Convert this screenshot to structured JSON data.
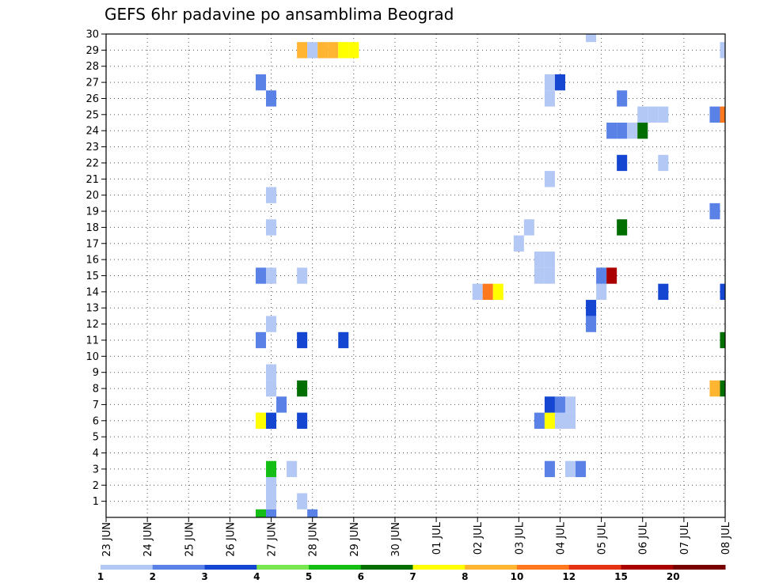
{
  "chart_data": {
    "type": "heatmap",
    "title": "GEFS 6hr padavine po ansamblima Beograd",
    "x_tick_labels": [
      "23 JUN",
      "24 JUN",
      "25 JUN",
      "26 JUN",
      "27 JUN",
      "28 JUN",
      "29 JUN",
      "30 JUN",
      "01 JUL",
      "02 JUL",
      "03 JUL",
      "04 JUL",
      "05 JUL",
      "06 JUL",
      "07 JUL",
      "08 JUL"
    ],
    "y_tick_labels": [
      "1",
      "2",
      "3",
      "4",
      "5",
      "6",
      "7",
      "8",
      "9",
      "10",
      "11",
      "12",
      "13",
      "14",
      "15",
      "16",
      "17",
      "18",
      "19",
      "20",
      "21",
      "22",
      "23",
      "24",
      "25",
      "26",
      "27",
      "28",
      "29",
      "30"
    ],
    "x_unit": "6-hour step from 23 JUN 00",
    "xlim": [
      0,
      60
    ],
    "ylim": [
      0,
      30
    ],
    "grid": "dotted",
    "legend_position": "bottom",
    "legend": {
      "labels": [
        "1",
        "2",
        "3",
        "4",
        "5",
        "6",
        "7",
        "8",
        "10",
        "12",
        "15",
        "20"
      ],
      "colors": [
        "#b4c8f5",
        "#5a82e6",
        "#1446d2",
        "#78e650",
        "#14be14",
        "#006e00",
        "#ffff00",
        "#ffb432",
        "#ff781e",
        "#e63214",
        "#aa0000",
        "#780000"
      ]
    },
    "cells": [
      {
        "x": 15,
        "y": 0,
        "v": 5
      },
      {
        "x": 16,
        "y": 0,
        "v": 2
      },
      {
        "x": 16,
        "y": 1,
        "v": 1
      },
      {
        "x": 16,
        "y": 2,
        "v": 1
      },
      {
        "x": 16,
        "y": 3,
        "v": 5
      },
      {
        "x": 18,
        "y": 3,
        "v": 1
      },
      {
        "x": 19,
        "y": 1,
        "v": 1
      },
      {
        "x": 20,
        "y": 0,
        "v": 2
      },
      {
        "x": 15,
        "y": 6,
        "v": 7
      },
      {
        "x": 16,
        "y": 6,
        "v": 3
      },
      {
        "x": 17,
        "y": 7,
        "v": 2
      },
      {
        "x": 19,
        "y": 6,
        "v": 3
      },
      {
        "x": 19,
        "y": 8,
        "v": 6
      },
      {
        "x": 16,
        "y": 8,
        "v": 1
      },
      {
        "x": 16,
        "y": 9,
        "v": 1
      },
      {
        "x": 15,
        "y": 11,
        "v": 2
      },
      {
        "x": 16,
        "y": 12,
        "v": 1
      },
      {
        "x": 19,
        "y": 11,
        "v": 3
      },
      {
        "x": 23,
        "y": 11,
        "v": 3
      },
      {
        "x": 15,
        "y": 15,
        "v": 2
      },
      {
        "x": 16,
        "y": 15,
        "v": 1
      },
      {
        "x": 19,
        "y": 15,
        "v": 1
      },
      {
        "x": 16,
        "y": 18,
        "v": 1
      },
      {
        "x": 16,
        "y": 20,
        "v": 1
      },
      {
        "x": 16,
        "y": 26,
        "v": 2
      },
      {
        "x": 15,
        "y": 27,
        "v": 2
      },
      {
        "x": 19,
        "y": 29,
        "v": 8
      },
      {
        "x": 20,
        "y": 29,
        "v": 1
      },
      {
        "x": 21,
        "y": 29,
        "v": 8
      },
      {
        "x": 22,
        "y": 29,
        "v": 8
      },
      {
        "x": 23,
        "y": 29,
        "v": 7
      },
      {
        "x": 24,
        "y": 29,
        "v": 7
      },
      {
        "x": 36,
        "y": 14,
        "v": 1
      },
      {
        "x": 37,
        "y": 14,
        "v": 10
      },
      {
        "x": 38,
        "y": 14,
        "v": 7
      },
      {
        "x": 40,
        "y": 17,
        "v": 1
      },
      {
        "x": 41,
        "y": 18,
        "v": 1
      },
      {
        "x": 42,
        "y": 15,
        "v": 1
      },
      {
        "x": 43,
        "y": 15,
        "v": 1
      },
      {
        "x": 43,
        "y": 16,
        "v": 1
      },
      {
        "x": 42,
        "y": 16,
        "v": 1
      },
      {
        "x": 42,
        "y": 6,
        "v": 2
      },
      {
        "x": 43,
        "y": 6,
        "v": 7
      },
      {
        "x": 44,
        "y": 6,
        "v": 1
      },
      {
        "x": 45,
        "y": 6,
        "v": 1
      },
      {
        "x": 43,
        "y": 7,
        "v": 3
      },
      {
        "x": 44,
        "y": 7,
        "v": 2
      },
      {
        "x": 45,
        "y": 7,
        "v": 1
      },
      {
        "x": 43,
        "y": 3,
        "v": 2
      },
      {
        "x": 45,
        "y": 3,
        "v": 1
      },
      {
        "x": 46,
        "y": 3,
        "v": 2
      },
      {
        "x": 43,
        "y": 21,
        "v": 1
      },
      {
        "x": 43,
        "y": 26,
        "v": 1
      },
      {
        "x": 43,
        "y": 27,
        "v": 1
      },
      {
        "x": 44,
        "y": 27,
        "v": 3
      },
      {
        "x": 47,
        "y": 12,
        "v": 2
      },
      {
        "x": 47,
        "y": 13,
        "v": 3
      },
      {
        "x": 48,
        "y": 14,
        "v": 1
      },
      {
        "x": 48,
        "y": 15,
        "v": 2
      },
      {
        "x": 49,
        "y": 15,
        "v": 15
      },
      {
        "x": 47,
        "y": 30,
        "v": 1
      },
      {
        "x": 50,
        "y": 18,
        "v": 6
      },
      {
        "x": 50,
        "y": 22,
        "v": 3
      },
      {
        "x": 50,
        "y": 24,
        "v": 2
      },
      {
        "x": 49,
        "y": 24,
        "v": 2
      },
      {
        "x": 51,
        "y": 24,
        "v": 1
      },
      {
        "x": 50,
        "y": 26,
        "v": 2
      },
      {
        "x": 52,
        "y": 24,
        "v": 6
      },
      {
        "x": 52,
        "y": 25,
        "v": 1
      },
      {
        "x": 53,
        "y": 25,
        "v": 1
      },
      {
        "x": 54,
        "y": 25,
        "v": 1
      },
      {
        "x": 54,
        "y": 14,
        "v": 3
      },
      {
        "x": 54,
        "y": 22,
        "v": 1
      },
      {
        "x": 59,
        "y": 8,
        "v": 8
      },
      {
        "x": 60,
        "y": 8,
        "v": 6
      },
      {
        "x": 60,
        "y": 11,
        "v": 6
      },
      {
        "x": 60,
        "y": 14,
        "v": 3
      },
      {
        "x": 59,
        "y": 19,
        "v": 2
      },
      {
        "x": 59,
        "y": 25,
        "v": 2
      },
      {
        "x": 60,
        "y": 25,
        "v": 10
      },
      {
        "x": 60,
        "y": 29,
        "v": 1
      }
    ]
  }
}
